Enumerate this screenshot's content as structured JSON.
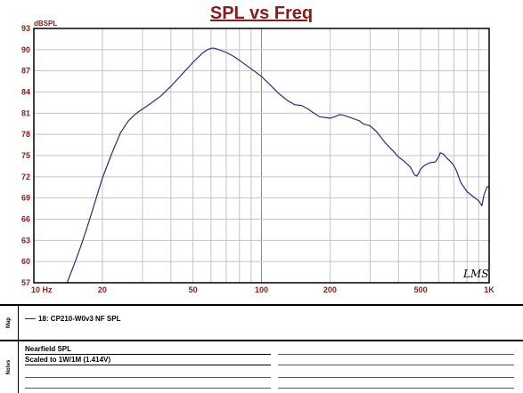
{
  "chart_data": {
    "type": "line",
    "title": "SPL vs Freq",
    "ylabel": "dBSPL",
    "xscale": "log",
    "xlim": [
      10,
      1000
    ],
    "ylim": [
      57,
      93
    ],
    "yticks": [
      93,
      90,
      87,
      84,
      81,
      78,
      75,
      72,
      69,
      66,
      63,
      60,
      57
    ],
    "ytick_labels": [
      "93",
      "90",
      "87",
      "84",
      "81",
      "78",
      "75",
      "72",
      "69",
      "66",
      "63",
      "60",
      "57"
    ],
    "xtick_labels": [
      {
        "value": 10,
        "label": "10 Hz"
      },
      {
        "value": 20,
        "label": "20"
      },
      {
        "value": 50,
        "label": "50"
      },
      {
        "value": 100,
        "label": "100"
      },
      {
        "value": 200,
        "label": "200"
      },
      {
        "value": 500,
        "label": "500"
      },
      {
        "value": 1000,
        "label": "1K"
      }
    ],
    "grid": true,
    "series": [
      {
        "name": "18: CP210-W0v3 NF SPL",
        "color": "#2B2B80",
        "x": [
          14,
          15,
          16,
          17,
          18,
          19,
          20,
          22,
          24,
          26,
          28,
          30,
          33,
          36,
          40,
          45,
          50,
          55,
          58,
          60,
          62,
          65,
          70,
          75,
          80,
          90,
          100,
          110,
          120,
          130,
          140,
          150,
          160,
          170,
          180,
          190,
          200,
          210,
          220,
          230,
          240,
          250,
          260,
          270,
          280,
          300,
          320,
          350,
          380,
          400,
          420,
          450,
          470,
          480,
          490,
          500,
          520,
          550,
          580,
          600,
          610,
          630,
          650,
          680,
          700,
          720,
          750,
          780,
          800,
          850,
          900,
          930,
          950,
          980,
          1000
        ],
        "y": [
          57,
          59.5,
          62,
          64.5,
          67,
          69.5,
          71.8,
          75.3,
          78.2,
          79.9,
          80.9,
          81.6,
          82.5,
          83.4,
          84.8,
          86.6,
          88.2,
          89.5,
          90.0,
          90.2,
          90.2,
          90.0,
          89.6,
          89.1,
          88.5,
          87.3,
          86.2,
          84.9,
          83.7,
          82.8,
          82.2,
          82.1,
          81.6,
          81.0,
          80.5,
          80.4,
          80.3,
          80.5,
          80.8,
          80.7,
          80.5,
          80.3,
          80.1,
          79.9,
          79.5,
          79.2,
          78.4,
          76.8,
          75.6,
          74.8,
          74.3,
          73.4,
          72.3,
          72.1,
          72.5,
          73.1,
          73.6,
          74.0,
          74.1,
          74.8,
          75.4,
          75.2,
          74.7,
          74.1,
          73.6,
          72.8,
          71.2,
          70.4,
          69.9,
          69.2,
          68.6,
          67.9,
          69.5,
          70.6,
          70.6
        ]
      }
    ],
    "watermark": "LMS"
  },
  "map_label": "Map",
  "notes_label": "Notes",
  "notes": [
    "Nearfield SPL",
    "Scaled to 1W/1M  (1.414V)"
  ]
}
